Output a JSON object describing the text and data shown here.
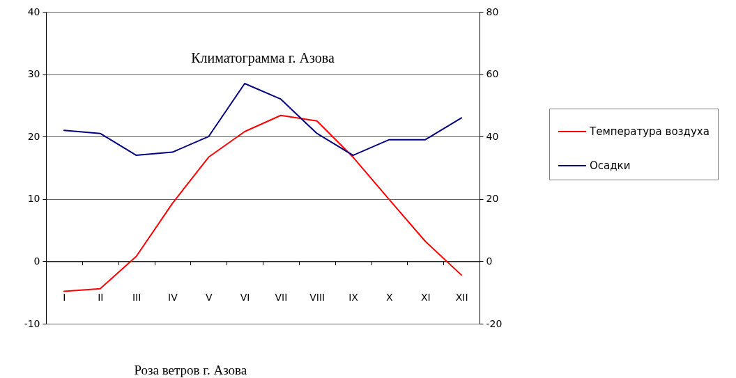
{
  "chart_data": {
    "type": "line",
    "title": "Климатограмма г. Азова",
    "categories": [
      "I",
      "II",
      "III",
      "IV",
      "V",
      "VI",
      "VII",
      "VIII",
      "IX",
      "X",
      "XI",
      "XII"
    ],
    "series": [
      {
        "name": "Температура воздуха",
        "color": "#ff0000",
        "values": [
          -4.8,
          -4.4,
          0.8,
          9.3,
          16.7,
          20.8,
          23.4,
          22.5,
          16.7,
          9.9,
          3.2,
          -2.2
        ]
      },
      {
        "name": "Осадки",
        "color": "#000080",
        "axis": "y2",
        "values": [
          42,
          41,
          34,
          35,
          40,
          57,
          52,
          41,
          34,
          39,
          39,
          46
        ]
      }
    ],
    "ylim": [
      -10,
      40
    ],
    "yticks": [
      -10,
      0,
      10,
      20,
      30,
      40
    ],
    "y2lim": [
      -20,
      80
    ],
    "y2ticks": [
      -20,
      0,
      20,
      40,
      60,
      80
    ],
    "grid": "y",
    "legend": "right",
    "line_style": "solid",
    "annotations": [
      "Роза ветров г. Азова"
    ]
  }
}
